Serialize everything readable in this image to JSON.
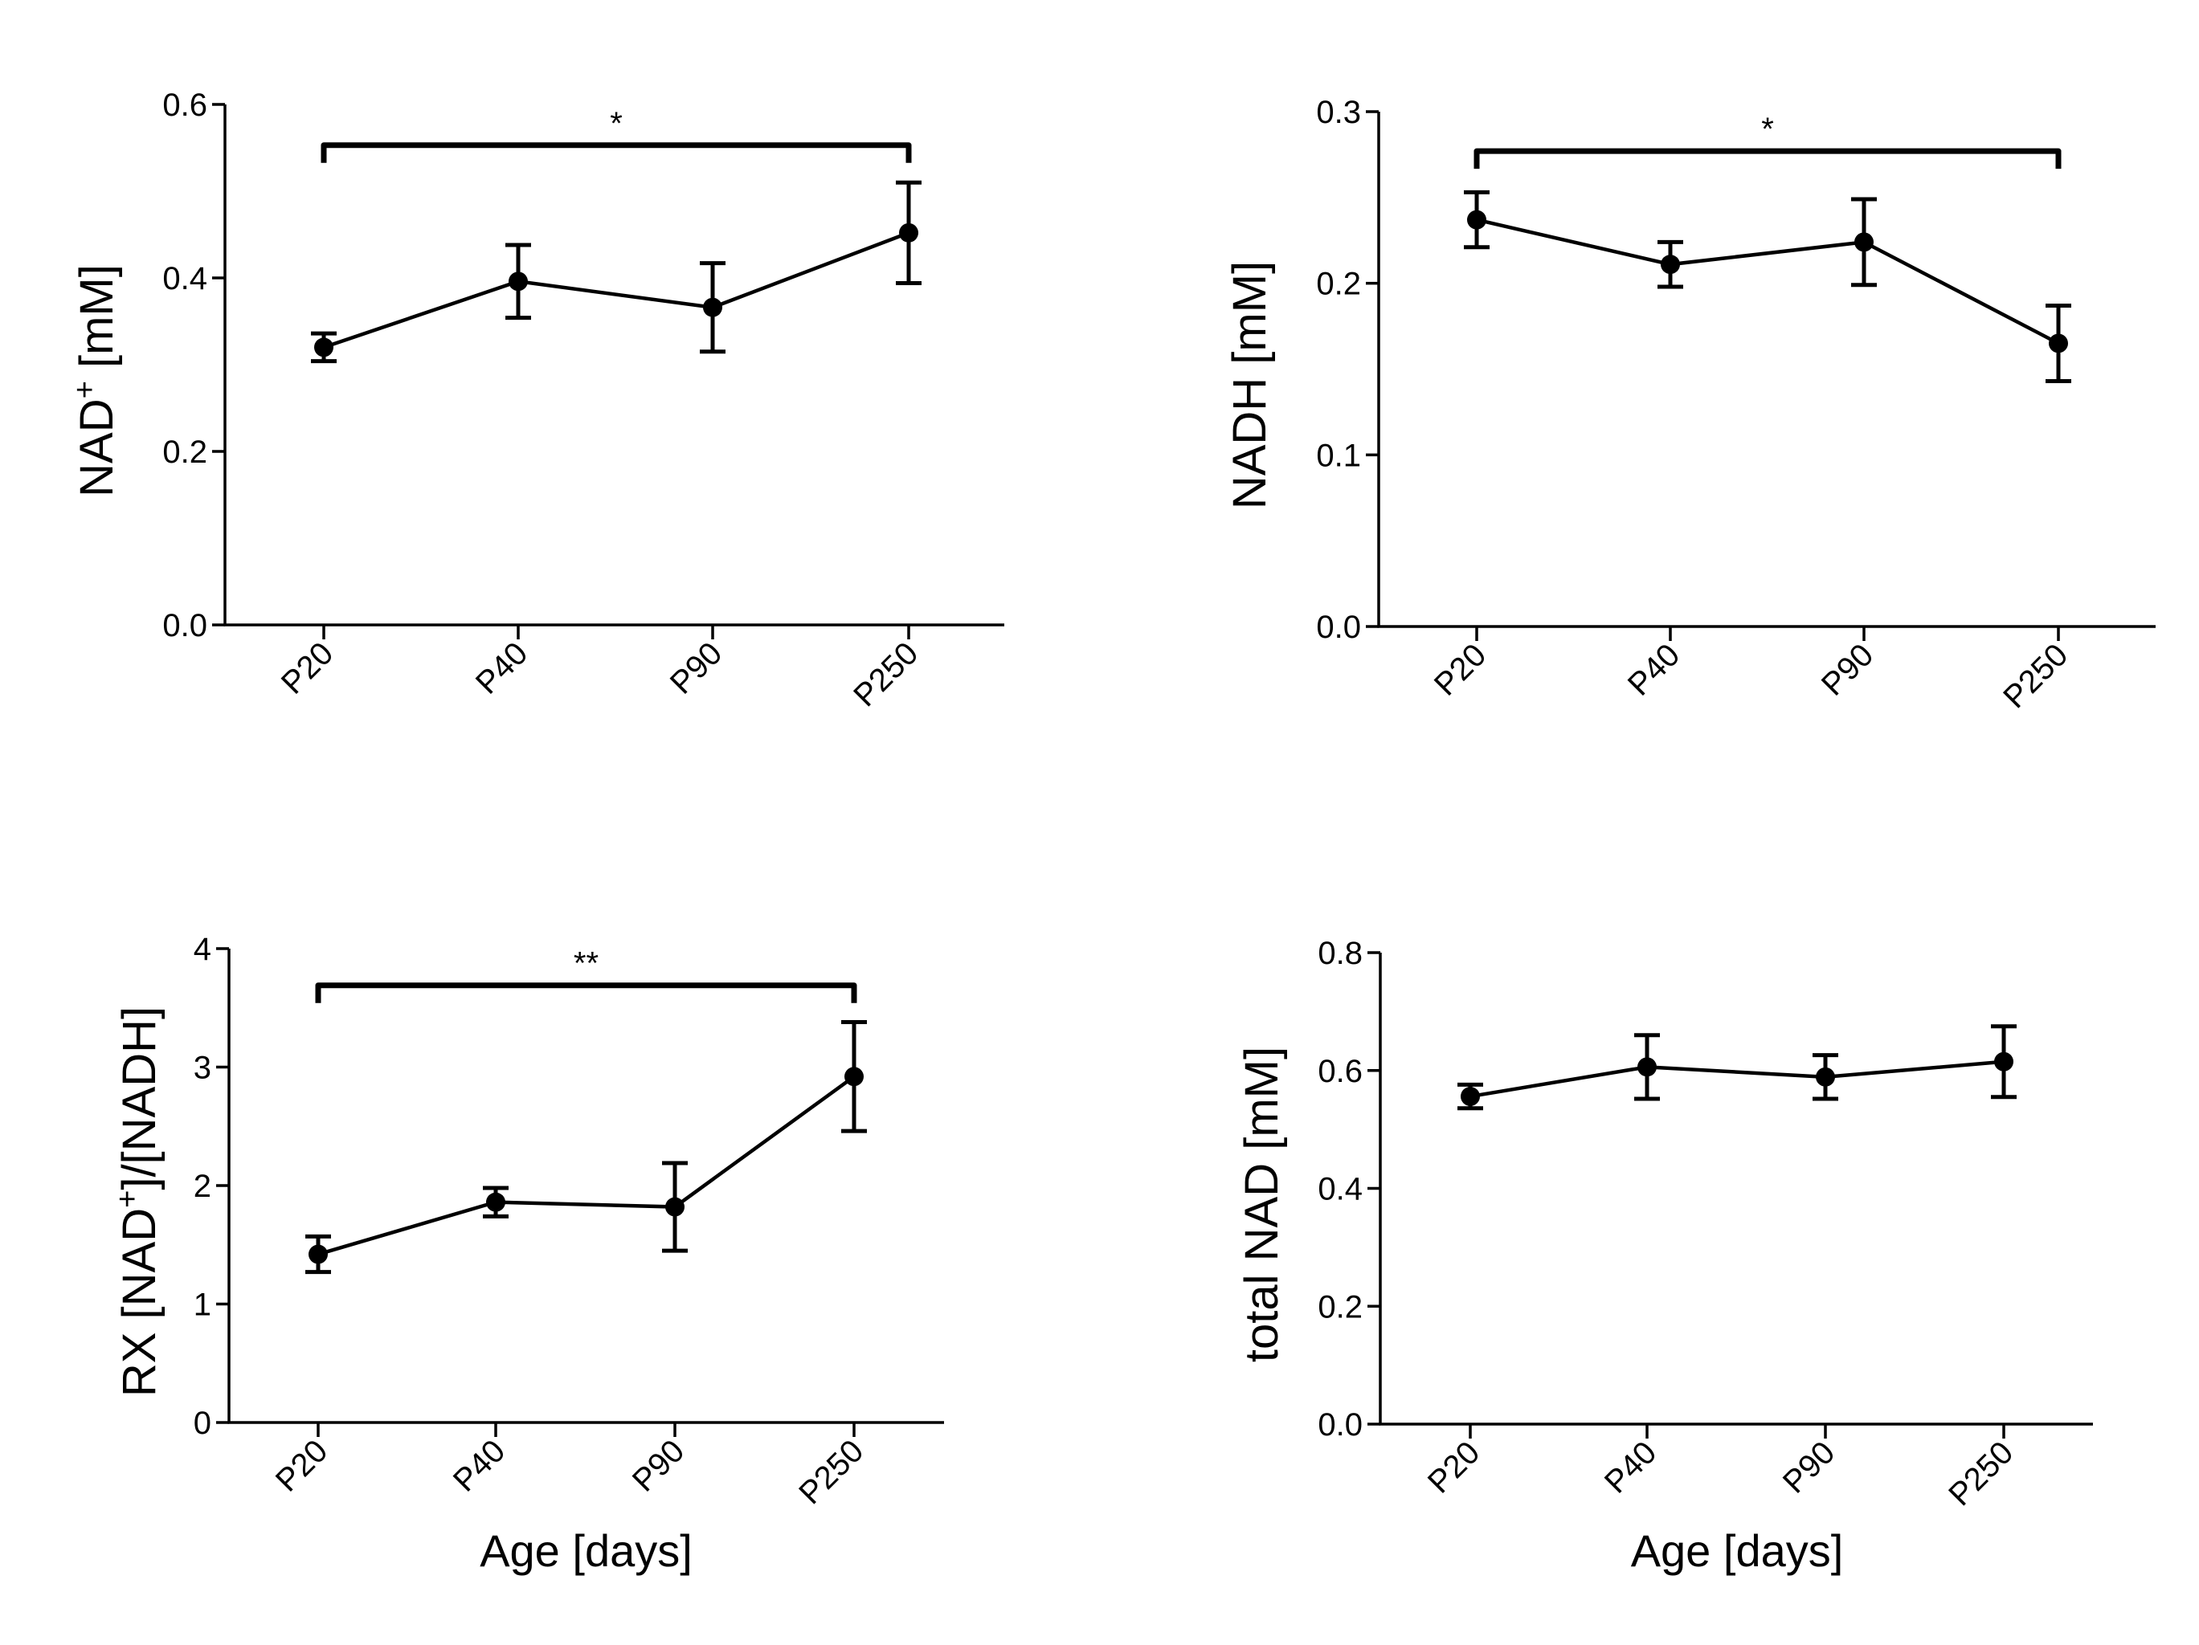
{
  "colors": {
    "ink": "#000000",
    "background": "#ffffff"
  },
  "chart_data": [
    {
      "type": "line",
      "ylabel_main": "NAD",
      "ylabel_sup": "+",
      "ylabel_rest": " [mM]",
      "xlabel": "",
      "categories": [
        "P20",
        "P40",
        "P90",
        "P250"
      ],
      "values": [
        0.32,
        0.396,
        0.366,
        0.452
      ],
      "errors": [
        0.016,
        0.042,
        0.051,
        0.058
      ],
      "ylim": [
        0.0,
        0.6
      ],
      "yticks": [
        0.0,
        0.2,
        0.4,
        0.6
      ],
      "ytick_labels": [
        "0.0",
        "0.2",
        "0.4",
        "0.6"
      ],
      "bracket": {
        "from": "P20",
        "to": "P250",
        "y_value": 0.553,
        "label": "*"
      }
    },
    {
      "type": "line",
      "ylabel_main": "NADH [mM]",
      "ylabel_sup": "",
      "ylabel_rest": "",
      "xlabel": "",
      "categories": [
        "P20",
        "P40",
        "P90",
        "P250"
      ],
      "values": [
        0.237,
        0.211,
        0.224,
        0.165
      ],
      "errors": [
        0.016,
        0.013,
        0.025,
        0.022
      ],
      "ylim": [
        0.0,
        0.3
      ],
      "yticks": [
        0.0,
        0.1,
        0.2,
        0.3
      ],
      "ytick_labels": [
        "0.0",
        "0.1",
        "0.2",
        "0.3"
      ],
      "bracket": {
        "from": "P20",
        "to": "P250",
        "y_value": 0.277,
        "label": "*"
      }
    },
    {
      "type": "line",
      "ylabel_main": "RX  [NAD",
      "ylabel_sup": "+",
      "ylabel_rest": "]/[NADH]",
      "xlabel": "Age [days]",
      "categories": [
        "P20",
        "P40",
        "P90",
        "P250"
      ],
      "values": [
        1.42,
        1.86,
        1.82,
        2.92
      ],
      "errors": [
        0.15,
        0.12,
        0.37,
        0.46
      ],
      "ylim": [
        0,
        4
      ],
      "yticks": [
        0,
        1,
        2,
        3,
        4
      ],
      "ytick_labels": [
        "0",
        "1",
        "2",
        "3",
        "4"
      ],
      "bracket": {
        "from": "P20",
        "to": "P250",
        "y_value": 3.69,
        "label": "**"
      }
    },
    {
      "type": "line",
      "ylabel_main": "total NAD [mM]",
      "ylabel_sup": "",
      "ylabel_rest": "",
      "xlabel": "Age [days]",
      "categories": [
        "P20",
        "P40",
        "P90",
        "P250"
      ],
      "values": [
        0.556,
        0.606,
        0.589,
        0.615
      ],
      "errors": [
        0.02,
        0.054,
        0.037,
        0.06
      ],
      "ylim": [
        0.0,
        0.8
      ],
      "yticks": [
        0.0,
        0.2,
        0.4,
        0.6,
        0.8
      ],
      "ytick_labels": [
        "0.0",
        "0.2",
        "0.4",
        "0.6",
        "0.8"
      ],
      "bracket": null
    }
  ]
}
